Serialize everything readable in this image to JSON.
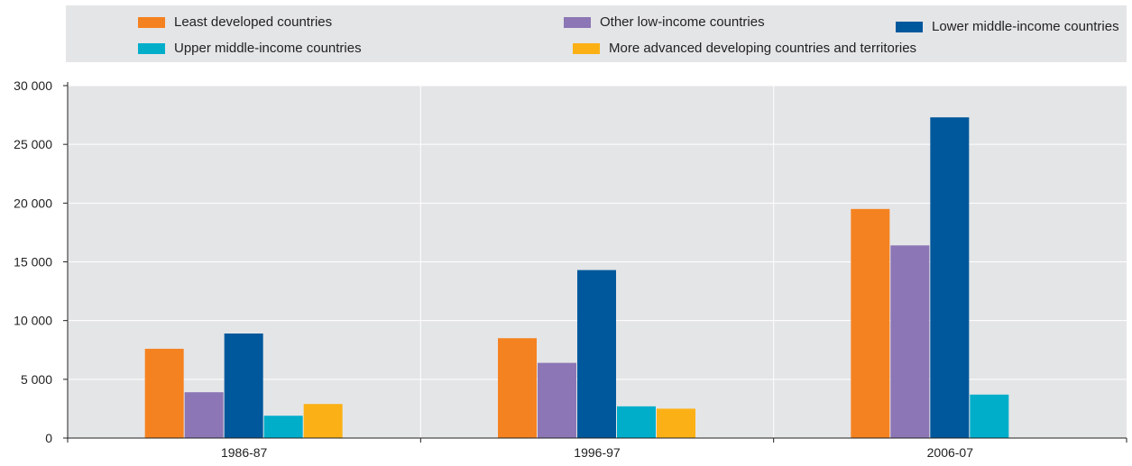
{
  "chart_data": {
    "type": "bar",
    "title": "",
    "xlabel": "",
    "ylabel": "",
    "categories": [
      "1986-87",
      "1996-97",
      "2006-07"
    ],
    "ylim": [
      0,
      30000
    ],
    "yticks": [
      0,
      5000,
      10000,
      15000,
      20000,
      25000,
      30000
    ],
    "ytick_labels": [
      "0",
      "5 000",
      "10 000",
      "15 000",
      "20 000",
      "25 000",
      "30 000"
    ],
    "grid": true,
    "legend_position": "top",
    "series": [
      {
        "name": "Least developed countries",
        "color": "#f58220",
        "values": [
          7600,
          8500,
          19500
        ]
      },
      {
        "name": "Other low-income countries",
        "color": "#8c76b5",
        "values": [
          3900,
          6400,
          16400
        ]
      },
      {
        "name": "Lower middle-income countries",
        "color": "#00589c",
        "values": [
          8900,
          14300,
          27300
        ]
      },
      {
        "name": "Upper middle-income countries",
        "color": "#00aeca",
        "values": [
          1900,
          2700,
          3700
        ]
      },
      {
        "name": "More advanced developing countries and territories",
        "color": "#fbb115",
        "values": [
          2900,
          2500,
          0
        ]
      }
    ]
  }
}
